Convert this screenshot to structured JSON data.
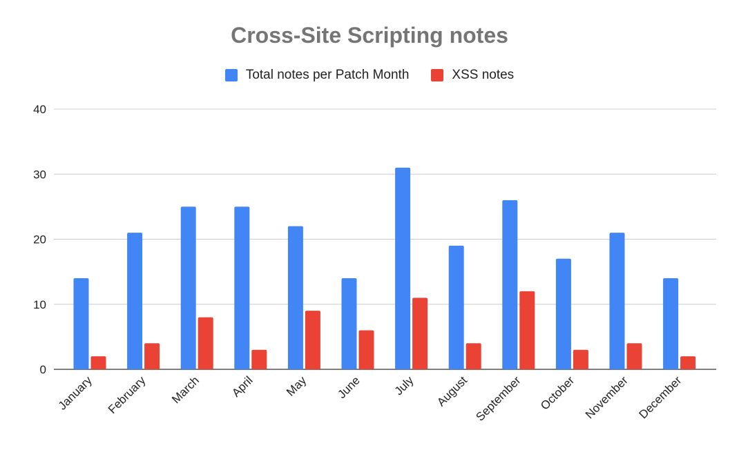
{
  "chart_data": {
    "type": "bar",
    "title": "Cross-Site Scripting notes",
    "xlabel": "",
    "ylabel": "",
    "ylim": [
      0,
      40
    ],
    "yticks": [
      0,
      10,
      20,
      30,
      40
    ],
    "grid": true,
    "legend_position": "top",
    "categories": [
      "January",
      "February",
      "March",
      "April",
      "May",
      "June",
      "July",
      "August",
      "September",
      "October",
      "November",
      "December"
    ],
    "series": [
      {
        "name": "Total notes per Patch Month",
        "color": "#4285f4",
        "values": [
          14,
          21,
          25,
          25,
          22,
          14,
          31,
          19,
          26,
          17,
          21,
          14
        ]
      },
      {
        "name": "XSS notes",
        "color": "#ea4335",
        "values": [
          2,
          4,
          8,
          3,
          9,
          6,
          11,
          4,
          12,
          3,
          4,
          2
        ]
      }
    ]
  }
}
